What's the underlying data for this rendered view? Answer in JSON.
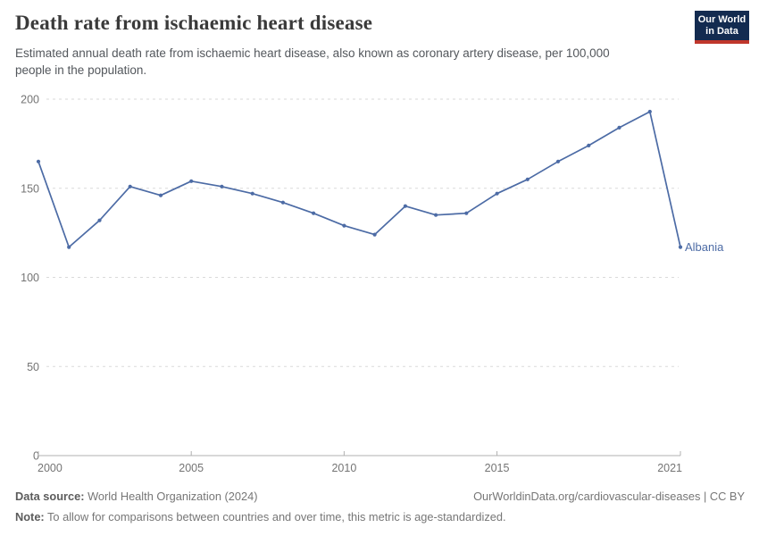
{
  "header": {
    "logo": {
      "line1": "Our World",
      "line2": "in Data"
    }
  },
  "chart_data": {
    "type": "line",
    "title": "Death rate from ischaemic heart disease",
    "subtitle": "Estimated annual death rate from ischaemic heart disease, also known as coronary artery disease, per 100,000 people in the population.",
    "x": [
      2000,
      2001,
      2002,
      2003,
      2004,
      2005,
      2006,
      2007,
      2008,
      2009,
      2010,
      2011,
      2012,
      2013,
      2014,
      2015,
      2016,
      2017,
      2018,
      2019,
      2020,
      2021
    ],
    "series": [
      {
        "name": "Albania",
        "color": "#4c6ba5",
        "values": [
          165,
          117,
          132,
          151,
          146,
          154,
          151,
          147,
          142,
          136,
          129,
          124,
          140,
          135,
          136,
          147,
          155,
          165,
          174,
          184,
          193,
          117
        ]
      }
    ],
    "xlabel": "",
    "ylabel": "",
    "xlim": [
      2000,
      2021
    ],
    "ylim": [
      0,
      200
    ],
    "x_ticks": [
      2000,
      2005,
      2010,
      2015,
      2021
    ],
    "y_ticks": [
      0,
      50,
      100,
      150,
      200
    ],
    "grid": "horizontal-dashed",
    "legend_position": "end-of-line-label"
  },
  "footer": {
    "datasource_label": "Data source:",
    "datasource_value": " World Health Organization (2024)",
    "citation": "OurWorldinData.org/cardiovascular-diseases | CC BY",
    "note_label": "Note:",
    "note_value": " To allow for comparisons between countries and over time, this metric is age-standardized."
  },
  "colors": {
    "series_line": "#4c6ba5",
    "logo_bg": "#132b50",
    "logo_stripe": "#c0372c",
    "grid": "#dadada",
    "axis": "#b0b0b0",
    "tick_text": "#747474",
    "title_text": "#3a3a3a",
    "subtitle_text": "#53575c",
    "footer_text": "#767676"
  }
}
